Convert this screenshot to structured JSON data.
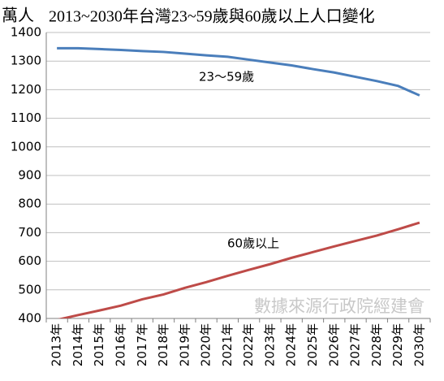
{
  "chart_data": {
    "type": "line",
    "unit_label": "萬人",
    "title": "2013~2030年台灣23~59歲與60歲以上人口變化",
    "categories": [
      "2013年",
      "2014年",
      "2015年",
      "2016年",
      "2017年",
      "2018年",
      "2019年",
      "2020年",
      "2021年",
      "2022年",
      "2023年",
      "2024年",
      "2025年",
      "2026年",
      "2027年",
      "2028年",
      "2029年",
      "2030年"
    ],
    "series": [
      {
        "name": "23～59歲",
        "color": "#4a7ebb",
        "values": [
          1345,
          1345,
          1342,
          1339,
          1335,
          1332,
          1326,
          1320,
          1315,
          1305,
          1295,
          1285,
          1272,
          1260,
          1245,
          1230,
          1213,
          1180
        ]
      },
      {
        "name": "60歲以上",
        "color": "#be4b48",
        "values": [
          395,
          412,
          428,
          445,
          467,
          484,
          507,
          527,
          549,
          570,
          590,
          612,
          632,
          652,
          671,
          690,
          712,
          735
        ]
      }
    ],
    "ylim": [
      400,
      1400
    ],
    "yticks": [
      400,
      500,
      600,
      700,
      800,
      900,
      1000,
      1100,
      1200,
      1300,
      1400
    ],
    "grid": true,
    "annotation": "數據來源行政院經建會"
  }
}
